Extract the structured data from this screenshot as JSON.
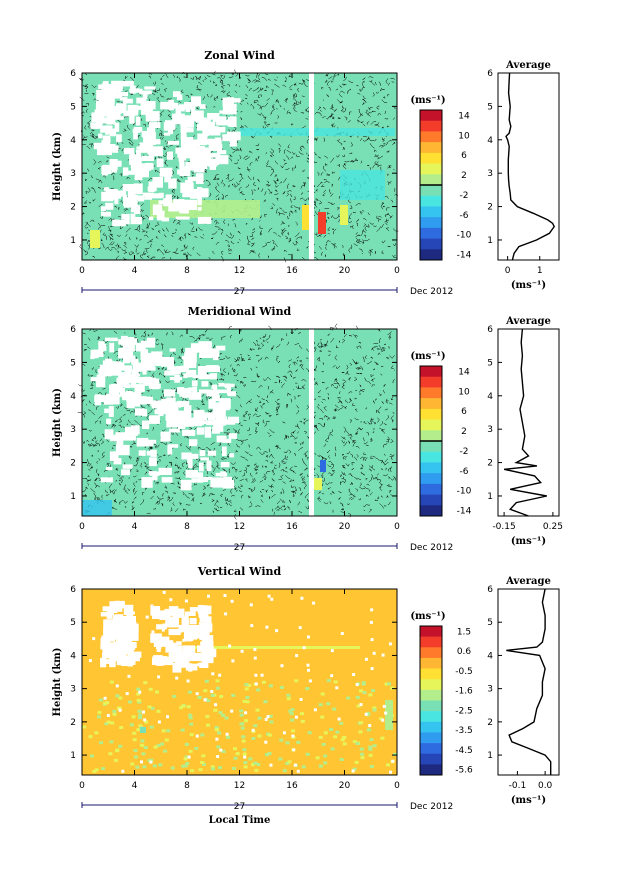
{
  "colors": {
    "zonal_bg": "#79e0b6",
    "vertical_bg": "#ffc533",
    "contour": "#000000",
    "zero_line": "#000000",
    "date_axis": "#1a1a6e"
  },
  "colorbar": {
    "colors": [
      "#1e2a80",
      "#2646b8",
      "#2f6be0",
      "#2f9cf0",
      "#35c4f0",
      "#49e5e0",
      "#79e0b6",
      "#b4ee8c",
      "#e6f55a",
      "#ffe033",
      "#ffb733",
      "#ff7a2a",
      "#f33d2a",
      "#c4122a"
    ]
  },
  "chart_data": [
    {
      "type": "heatmap",
      "title": "Zonal Wind",
      "xlabel": "",
      "ylabel": "Height (km)",
      "x_ticks": [
        "0",
        "4",
        "8",
        "12",
        "16",
        "20",
        "0"
      ],
      "y_ticks": [
        "1",
        "2",
        "3",
        "4",
        "5",
        "6"
      ],
      "ylim": [
        0.4,
        6.0
      ],
      "date_label": "27",
      "date_suffix": "Dec 2012",
      "colorbar_unit": "(ms⁻¹)",
      "colorbar_ticks": [
        "14",
        "10",
        "6",
        "2",
        "-2",
        "-6",
        "-10",
        "-14"
      ],
      "colorbar_range": [
        -16,
        16
      ],
      "profile": {
        "title": "Average",
        "xlabel": "(ms⁻¹)",
        "x_ticks": [
          "0",
          "1"
        ],
        "xlim": [
          -0.3,
          1.6
        ],
        "y": [
          0.4,
          0.6,
          0.8,
          1.0,
          1.2,
          1.4,
          1.5,
          1.6,
          1.8,
          2.0,
          2.2,
          2.4,
          2.6,
          2.8,
          3.0,
          3.4,
          3.8,
          4.0,
          4.1,
          4.2,
          4.4,
          4.6,
          5.0,
          5.4,
          5.8,
          6.0
        ],
        "x": [
          0.15,
          0.2,
          0.35,
          0.9,
          1.3,
          1.45,
          1.4,
          1.25,
          0.8,
          0.3,
          0.1,
          0.08,
          0.05,
          0.03,
          0.02,
          0.02,
          0.05,
          0.0,
          -0.05,
          0.05,
          0.1,
          0.05,
          0.08,
          0.03,
          0.05,
          0.06
        ]
      }
    },
    {
      "type": "heatmap",
      "title": "Meridional Wind",
      "xlabel": "",
      "ylabel": "Height (km)",
      "x_ticks": [
        "0",
        "4",
        "8",
        "12",
        "16",
        "20",
        "0"
      ],
      "y_ticks": [
        "1",
        "2",
        "3",
        "4",
        "5",
        "6"
      ],
      "ylim": [
        0.4,
        6.0
      ],
      "date_label": "27",
      "date_suffix": "Dec 2012",
      "colorbar_unit": "(ms⁻¹)",
      "colorbar_ticks": [
        "14",
        "10",
        "6",
        "2",
        "-2",
        "-6",
        "-10",
        "-14"
      ],
      "colorbar_range": [
        -16,
        16
      ],
      "profile": {
        "title": "Average",
        "xlabel": "(ms⁻¹)",
        "x_ticks": [
          "-0.15",
          "0.25"
        ],
        "xlim": [
          -0.2,
          0.3
        ],
        "y": [
          0.4,
          0.6,
          0.8,
          1.0,
          1.2,
          1.4,
          1.6,
          1.8,
          1.9,
          2.0,
          2.2,
          2.4,
          2.8,
          3.2,
          3.6,
          4.0,
          4.4,
          4.8,
          5.2,
          5.6,
          6.0
        ],
        "x": [
          0.05,
          -0.1,
          -0.05,
          0.2,
          -0.1,
          0.15,
          0.1,
          -0.15,
          0.12,
          -0.05,
          0.05,
          0.0,
          0.02,
          0.0,
          -0.02,
          0.01,
          0.0,
          -0.01,
          0.0,
          -0.01,
          0.0
        ]
      }
    },
    {
      "type": "heatmap",
      "title": "Vertical Wind",
      "xlabel": "Local Time",
      "ylabel": "Height (km)",
      "x_ticks": [
        "0",
        "4",
        "8",
        "12",
        "16",
        "20",
        "0"
      ],
      "y_ticks": [
        "1",
        "2",
        "3",
        "4",
        "5",
        "6"
      ],
      "ylim": [
        0.4,
        6.0
      ],
      "date_label": "27",
      "date_suffix": "Dec 2012",
      "colorbar_unit": "(ms⁻¹)",
      "colorbar_ticks": [
        "1.5",
        "0.6",
        "-0.5",
        "-1.6",
        "-2.5",
        "-3.5",
        "-4.5",
        "-5.6"
      ],
      "colorbar_range": [
        -6.0,
        2.0
      ],
      "profile": {
        "title": "Average",
        "xlabel": "(ms⁻¹)",
        "x_ticks": [
          "-0.1",
          "0.0"
        ],
        "xlim": [
          -0.17,
          0.05
        ],
        "y": [
          0.4,
          0.8,
          1.0,
          1.2,
          1.4,
          1.6,
          1.8,
          2.0,
          2.4,
          2.8,
          3.2,
          3.6,
          4.0,
          4.15,
          4.25,
          4.4,
          4.8,
          5.2,
          5.6,
          6.0
        ],
        "x": [
          0.02,
          0.02,
          0.0,
          -0.06,
          -0.12,
          -0.13,
          -0.08,
          -0.04,
          -0.03,
          -0.01,
          -0.01,
          0.0,
          -0.02,
          -0.14,
          -0.03,
          -0.01,
          0.0,
          0.0,
          -0.01,
          0.0
        ]
      }
    }
  ]
}
